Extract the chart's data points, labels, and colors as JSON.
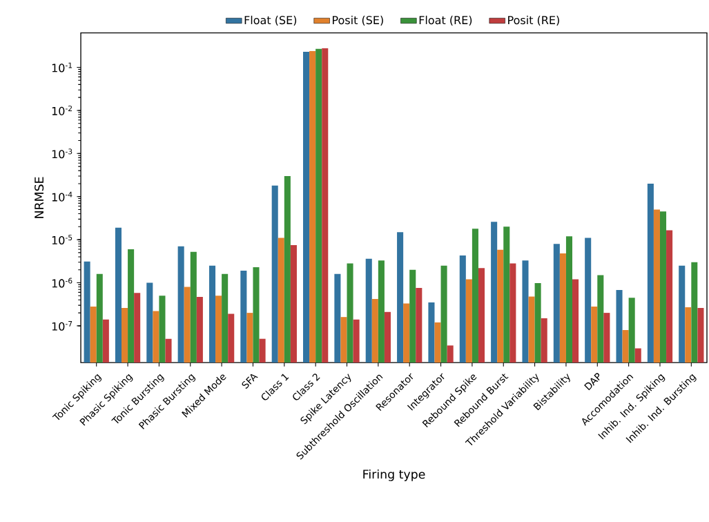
{
  "chart_data": {
    "type": "bar",
    "xlabel": "Firing type",
    "ylabel": "NRMSE",
    "log": "y",
    "legend": "top",
    "categories": [
      "Tonic Spiking",
      "Phasic Spiking",
      "Tonic Bursting",
      "Phasic Bursting",
      "Mixed Mode",
      "SFA",
      "Class 1",
      "Class 2",
      "Spike Latency",
      "Subthreshold Oscillation",
      "Resonator",
      "Integrator",
      "Rebound Spike",
      "Rebound Burst",
      "Threshold Variability",
      "Bistability",
      "DAP",
      "Accomodation",
      "Inhib. Ind. Spiking",
      "Inhib. Ind. Bursting"
    ],
    "series": [
      {
        "name": "Float (SE)",
        "color": "#3274a1",
        "values": [
          3.1e-06,
          1.9e-05,
          1e-06,
          7e-06,
          2.5e-06,
          1.9e-06,
          0.00018,
          0.23,
          1.6e-06,
          3.6e-06,
          1.5e-05,
          3.5e-07,
          4.3e-06,
          2.6e-05,
          3.3e-06,
          8e-06,
          1.1e-05,
          6.8e-07,
          0.0002,
          2.5e-06
        ]
      },
      {
        "name": "Posit (SE)",
        "color": "#e1812c",
        "values": [
          2.8e-07,
          2.6e-07,
          2.2e-07,
          8e-07,
          5e-07,
          2e-07,
          1.1e-05,
          0.24,
          1.6e-07,
          4.2e-07,
          3.3e-07,
          1.2e-07,
          1.2e-06,
          5.8e-06,
          4.8e-07,
          4.8e-06,
          2.8e-07,
          8e-08,
          5e-05,
          2.7e-07
        ]
      },
      {
        "name": "Float (RE)",
        "color": "#3a923a",
        "values": [
          1.6e-06,
          6e-06,
          5e-07,
          5.2e-06,
          1.6e-06,
          2.3e-06,
          0.0003,
          0.27,
          2.8e-06,
          3.3e-06,
          2e-06,
          2.5e-06,
          1.8e-05,
          2e-05,
          9.8e-07,
          1.2e-05,
          1.5e-06,
          4.5e-07,
          4.5e-05,
          3e-06
        ]
      },
      {
        "name": "Posit (RE)",
        "color": "#c03d3e",
        "values": [
          1.4e-07,
          5.8e-07,
          5e-08,
          4.7e-07,
          1.9e-07,
          5e-08,
          7.5e-06,
          0.28,
          1.4e-07,
          2.1e-07,
          7.6e-07,
          3.5e-08,
          2.2e-06,
          2.8e-06,
          1.5e-07,
          1.2e-06,
          2e-07,
          3e-08,
          1.65e-05,
          2.6e-07
        ]
      }
    ],
    "ylim": [
      1.4e-08,
      0.63
    ],
    "yticks": [
      {
        "value": 1e-07,
        "label": "10$^{-7}$"
      },
      {
        "value": 1e-06,
        "label": "10$^{-6}$"
      },
      {
        "value": 1e-05,
        "label": "10$^{-5}$"
      },
      {
        "value": 0.0001,
        "label": "10$^{-4}$"
      },
      {
        "value": 0.001,
        "label": "10$^{-3}$"
      },
      {
        "value": 0.01,
        "label": "10$^{-2}$"
      },
      {
        "value": 0.1,
        "label": "10$^{-1}$"
      }
    ]
  }
}
